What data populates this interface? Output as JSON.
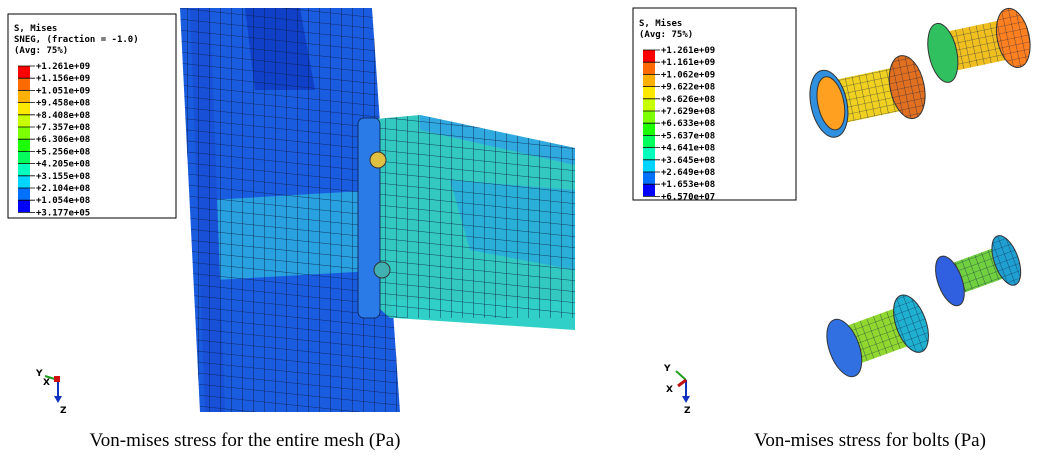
{
  "panels": [
    {
      "legend": {
        "title_lines": [
          "S, Mises",
          "SNEG, (fraction = -1.0)",
          "(Avg: 75%)"
        ],
        "labels": [
          "+1.261e+09",
          "+1.156e+09",
          "+1.051e+09",
          "+9.458e+08",
          "+8.408e+08",
          "+7.357e+08",
          "+6.306e+08",
          "+5.256e+08",
          "+4.205e+08",
          "+3.155e+08",
          "+2.104e+08",
          "+1.054e+08",
          "+3.177e+05"
        ]
      },
      "triad": {
        "y": "Y",
        "x": "X",
        "z": "Z"
      },
      "caption": "Von-mises stress for the entire mesh (Pa)"
    },
    {
      "legend": {
        "title_lines": [
          "S, Mises",
          "(Avg: 75%)"
        ],
        "labels": [
          "+1.261e+09",
          "+1.161e+09",
          "+1.062e+09",
          "+9.622e+08",
          "+8.626e+08",
          "+7.629e+08",
          "+6.633e+08",
          "+5.637e+08",
          "+4.641e+08",
          "+3.645e+08",
          "+2.649e+08",
          "+1.653e+08",
          "+6.570e+07"
        ]
      },
      "triad": {
        "y": "Y",
        "x": "X",
        "z": "Z"
      },
      "caption": "Von-mises stress for bolts (Pa)"
    }
  ]
}
